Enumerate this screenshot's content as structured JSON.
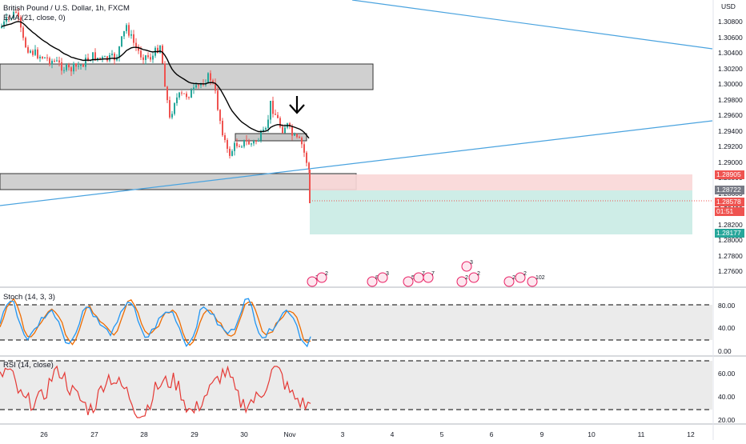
{
  "symbol_title": "British Pound / U.S. Dollar, 1h, FXCM",
  "ema_legend": "EMA (21, close, 0)",
  "currency": "USD",
  "price_axis": {
    "labels": [
      "1.30800",
      "1.30600",
      "1.30400",
      "1.30200",
      "1.30000",
      "1.29800",
      "1.29600",
      "1.29400",
      "1.29200",
      "1.29000",
      "1.28800",
      "1.28600",
      "1.28400",
      "1.28200",
      "1.28000",
      "1.27800",
      "1.27600"
    ],
    "tags": {
      "stop_loss": "1.28905",
      "entry": "1.28722",
      "last_price": "1.28578",
      "countdown": "01:51",
      "target": "1.28177"
    }
  },
  "time_axis": [
    "26",
    "27",
    "28",
    "29",
    "30",
    "Nov",
    "3",
    "4",
    "5",
    "6",
    "9",
    "10",
    "11",
    "12"
  ],
  "stoch": {
    "title": "Stoch (14, 3, 3)",
    "levels": [
      "80.00",
      "40.00",
      "0.00"
    ]
  },
  "rsi": {
    "title": "RSI (14, close)",
    "levels": [
      "60.00",
      "40.00",
      "20.00"
    ]
  },
  "events": [
    "3",
    "2",
    "8",
    "3",
    "5",
    "7",
    "7",
    "3",
    "2",
    "2",
    "2",
    "2",
    "102"
  ],
  "colors": {
    "bull": "#26a69a",
    "bear": "#ef5350",
    "ema": "#000000",
    "trendline": "#4aa3df",
    "stoch_k": "#2196f3",
    "stoch_d": "#ef6c00",
    "rsi": "#e53935",
    "stop_zone": "#f9d7d7",
    "target_zone": "#c9ebe4",
    "zone_box": "#cfcfcf"
  },
  "icons": [
    "down-arrow-annotation-icon",
    "economic-event-flag-icon"
  ]
}
